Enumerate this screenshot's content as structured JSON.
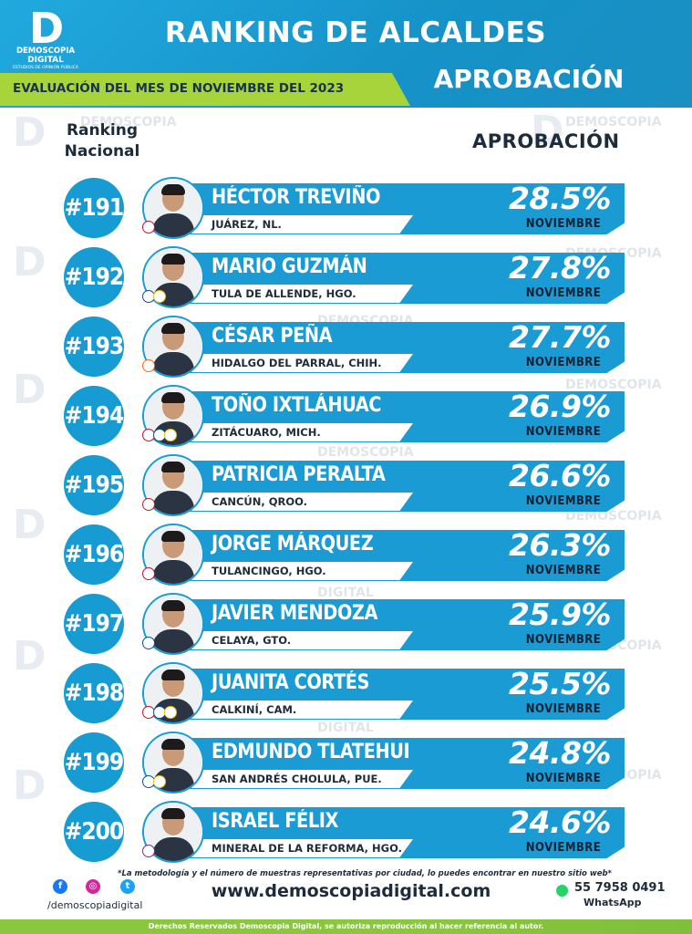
{
  "logo": {
    "mark": "D",
    "word1": "DEMOSCOPIA",
    "word2": "DIGITAL",
    "sub": "ESTUDIOS DE OPINIÓN PÚBLICA"
  },
  "header": {
    "title": "RANKING DE ALCALDES",
    "evaluation": "EVALUACIÓN DEL MES DE NOVIEMBRE DEL 2023",
    "approval": "APROBACIÓN",
    "colors": {
      "blue": "#1a9bd3",
      "green": "#a7d33b",
      "dark": "#1d2c3b"
    }
  },
  "columns": {
    "rank_line1": "Ranking",
    "rank_line2": "Nacional",
    "approval": "APROBACIÓN"
  },
  "watermark": {
    "text": "DEMOSCOPIA",
    "text2": "DIGITAL",
    "sub": "ESTUDIOS DE OPINIÓN PÚBLICA"
  },
  "rows": [
    {
      "rank": "#191",
      "name": "HÉCTOR TREVIÑO",
      "city": "JUÁREZ, NL.",
      "pct": "28.5%",
      "month": "NOVIEMBRE",
      "parties": [
        "PRI"
      ]
    },
    {
      "rank": "#192",
      "name": "MARIO GUZMÁN",
      "city": "TULA DE ALLENDE, HGO.",
      "pct": "27.8%",
      "month": "NOVIEMBRE",
      "parties": [
        "PAN",
        "PRD"
      ]
    },
    {
      "rank": "#193",
      "name": "CÉSAR PEÑA",
      "city": "HIDALGO DEL PARRAL, CHIH.",
      "pct": "27.7%",
      "month": "NOVIEMBRE",
      "parties": [
        "MC"
      ]
    },
    {
      "rank": "#194",
      "name": "TOÑO IXTLÁHUAC",
      "city": "ZITÁCUARO, MICH.",
      "pct": "26.9%",
      "month": "NOVIEMBRE",
      "parties": [
        "PRI",
        "PAN",
        "PRD"
      ]
    },
    {
      "rank": "#195",
      "name": "PATRICIA PERALTA",
      "city": "CANCÚN, QROO.",
      "pct": "26.6%",
      "month": "NOVIEMBRE",
      "parties": [
        "MORENA"
      ]
    },
    {
      "rank": "#196",
      "name": "JORGE MÁRQUEZ",
      "city": "TULANCINGO, HGO.",
      "pct": "26.3%",
      "month": "NOVIEMBRE",
      "parties": [
        "PRI"
      ]
    },
    {
      "rank": "#197",
      "name": "JAVIER MENDOZA",
      "city": "CELAYA, GTO.",
      "pct": "25.9%",
      "month": "NOVIEMBRE",
      "parties": [
        "PAN"
      ]
    },
    {
      "rank": "#198",
      "name": "JUANITA CORTÉS",
      "city": "CALKINÍ, CAM.",
      "pct": "25.5%",
      "month": "NOVIEMBRE",
      "parties": [
        "PRI",
        "PAN",
        "PRD"
      ]
    },
    {
      "rank": "#199",
      "name": "EDMUNDO TLATEHUI",
      "city": "SAN ANDRÉS CHOLULA, PUE.",
      "pct": "24.8%",
      "month": "NOVIEMBRE",
      "parties": [
        "PAN",
        "PRD"
      ]
    },
    {
      "rank": "#200",
      "name": "ISRAEL FÉLIX",
      "city": "MINERAL DE LA REFORMA, HGO.",
      "pct": "24.6%",
      "month": "NOVIEMBRE",
      "parties": [
        "IND"
      ]
    }
  ],
  "footer": {
    "note": "*La metodología y el número de muestras representativas por ciudad, lo puedes encontrar en nuestro sitio web*",
    "website": "www.demoscopiadigital.com",
    "handle": "/demoscopiadigital",
    "phone": "55 7958 0491",
    "whatsapp": "WhatsApp",
    "rights": "Derechos Reservados Demoscopia Digital, se autoriza reproducción al hacer referencia al autor.",
    "social_icons": [
      "facebook-icon",
      "instagram-icon",
      "twitter-icon",
      "whatsapp-icon"
    ]
  }
}
